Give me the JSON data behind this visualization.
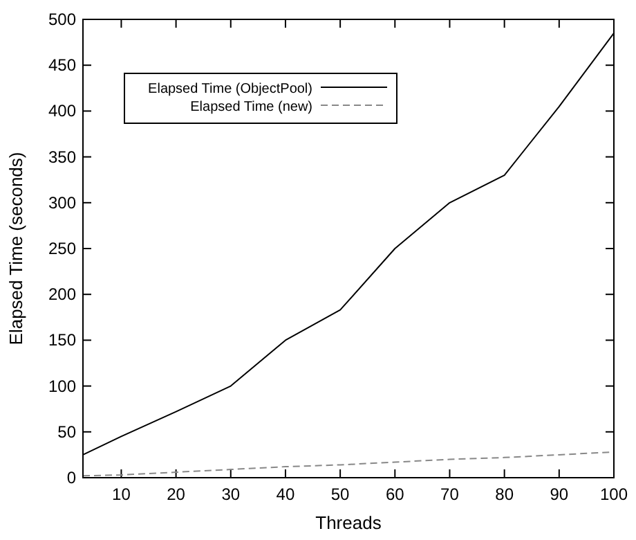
{
  "chart_data": {
    "type": "line",
    "xlabel": "Threads",
    "ylabel": "Elapsed Time (seconds)",
    "x": [
      3,
      10,
      20,
      30,
      40,
      50,
      60,
      70,
      80,
      90,
      100
    ],
    "series": [
      {
        "name": "Elapsed Time (ObjectPool)",
        "color": "#000000",
        "line_style": "solid",
        "values": [
          25,
          45,
          72,
          100,
          150,
          183,
          250,
          300,
          330,
          405,
          485
        ]
      },
      {
        "name": "Elapsed Time (new)",
        "color": "#888888",
        "line_style": "dashed",
        "values": [
          2,
          3,
          6,
          9,
          12,
          14,
          17,
          20,
          22,
          25,
          28
        ]
      }
    ],
    "xlim": [
      3,
      100
    ],
    "xticks": [
      10,
      20,
      30,
      40,
      50,
      60,
      70,
      80,
      90,
      100
    ],
    "ylim": [
      0,
      500
    ],
    "yticks": [
      0,
      50,
      100,
      150,
      200,
      250,
      300,
      350,
      400,
      450,
      500
    ],
    "legend": "top left",
    "grid": false
  }
}
